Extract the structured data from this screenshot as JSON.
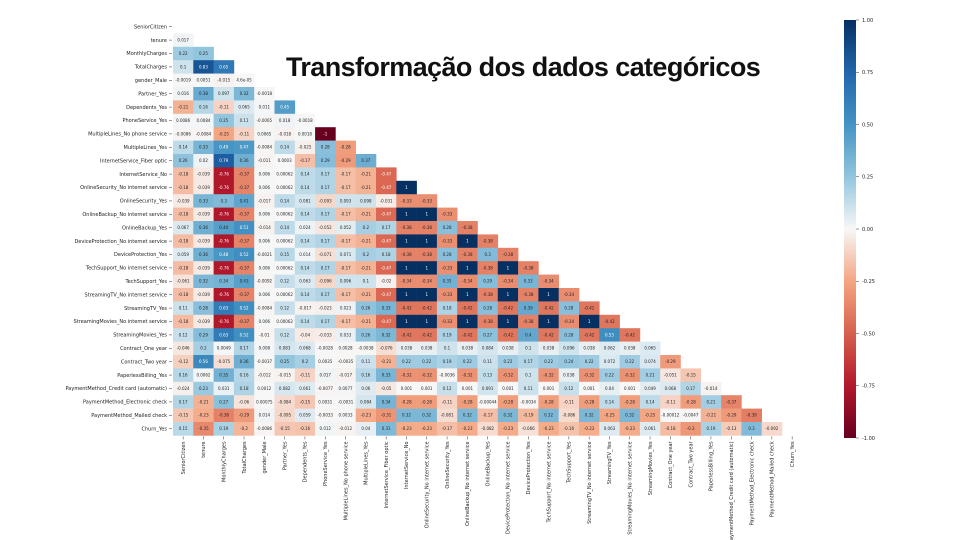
{
  "slide": {
    "title": "Transformação dos dados categóricos"
  },
  "chart_data": {
    "type": "heatmap",
    "title": "",
    "xlabel": "",
    "ylabel": "",
    "mask": "upper-triangle-including-diagonal",
    "value_range": [
      -1.0,
      1.0
    ],
    "colormap": "RdBu (red = -1, blue = +1)",
    "colorbar_ticks": [
      "1.00",
      "0.75",
      "0.50",
      "0.25",
      "0.00",
      "-0.25",
      "-0.50",
      "-0.75",
      "-1.00"
    ],
    "variables": [
      "SeniorCitizen",
      "tenure",
      "MonthlyCharges",
      "TotalCharges",
      "gender_Male",
      "Partner_Yes",
      "Dependents_Yes",
      "PhoneService_Yes",
      "MultipleLines_No phone service",
      "MultipleLines_Yes",
      "InternetService_Fiber optic",
      "InternetService_No",
      "OnlineSecurity_No internet service",
      "OnlineSecurity_Yes",
      "OnlineBackup_No internet service",
      "OnlineBackup_Yes",
      "DeviceProtection_No internet service",
      "DeviceProtection_Yes",
      "TechSupport_No internet service",
      "TechSupport_Yes",
      "StreamingTV_No internet service",
      "StreamingTV_Yes",
      "StreamingMovies_No internet service",
      "StreamingMovies_Yes",
      "Contract_One year",
      "Contract_Two year",
      "PaperlessBilling_Yes",
      "PaymentMethod_Credit card (automatic)",
      "PaymentMethod_Electronic check",
      "PaymentMethod_Mailed check",
      "Churn_Yes"
    ],
    "x_tick_labels": [
      "SeniorCitizen",
      "tenure",
      "MonthlyCharges",
      "TotalCharges",
      "gender_Male",
      "Partner_Yes",
      "Dependents_Yes",
      "PhoneService_Yes",
      "MultipleLines_No phone service",
      "MultipleLines_Yes",
      "InternetService_Fiber optic",
      "InternetService_No",
      "OnlineSecurity_No internet service",
      "OnlineSecurity_Yes",
      "OnlineBackup_No internet service",
      "OnlineBackup_Yes",
      "DeviceProtection_No internet service",
      "DeviceProtection_Yes",
      "TechSupport_No internet service",
      "TechSupport_Yes",
      "StreamingTV_No internet service",
      "StreamingTV_Yes",
      "StreamingMovies_No internet service",
      "StreamingMovies_Yes",
      "Contract_One year",
      "Contract_Two year",
      "PaperlessBilling_Yes",
      "PaymentMethod_Credit card (automatic)",
      "PaymentMethod_Electronic check",
      "PaymentMethod_Mailed check",
      "Churn_Yes"
    ],
    "rows": [
      [],
      [
        "0.017"
      ],
      [
        "0.22",
        "0.25"
      ],
      [
        "0.1",
        "0.83",
        "0.65"
      ],
      [
        "-0.0019",
        "0.0051",
        "-0.015",
        "4.6e-05"
      ],
      [
        "0.016",
        "0.38",
        "0.097",
        "0.32",
        "-0.0018"
      ],
      [
        "-0.21",
        "0.16",
        "-0.11",
        "0.065",
        "0.011",
        "0.45"
      ],
      [
        "0.0086",
        "0.0084",
        "0.25",
        "0.11",
        "-0.0065",
        "0.018",
        "-0.0018"
      ],
      [
        "-0.0086",
        "-0.0084",
        "-0.25",
        "-0.11",
        "0.0065",
        "-0.018",
        "0.0018",
        "-1"
      ],
      [
        "0.14",
        "0.33",
        "0.49",
        "0.47",
        "-0.0084",
        "0.14",
        "-0.025",
        "0.28",
        "-0.28"
      ],
      [
        "0.26",
        "0.02",
        "0.79",
        "0.36",
        "-0.011",
        "0.0003",
        "-0.17",
        "0.29",
        "-0.29",
        "0.37"
      ],
      [
        "-0.18",
        "-0.039",
        "-0.76",
        "-0.37",
        "0.006",
        "0.00062",
        "0.14",
        "0.17",
        "-0.17",
        "-0.21",
        "-0.47"
      ],
      [
        "-0.18",
        "-0.039",
        "-0.76",
        "-0.37",
        "0.006",
        "0.00062",
        "0.14",
        "0.17",
        "-0.17",
        "-0.21",
        "-0.47",
        "1"
      ],
      [
        "-0.039",
        "0.33",
        "0.3",
        "0.41",
        "-0.017",
        "0.14",
        "0.081",
        "-0.093",
        "0.093",
        "0.098",
        "-0.031",
        "-0.33",
        "-0.33"
      ],
      [
        "-0.18",
        "-0.039",
        "-0.76",
        "-0.37",
        "0.006",
        "0.00062",
        "0.14",
        "0.17",
        "-0.17",
        "-0.21",
        "-0.47",
        "1",
        "1",
        "-0.33"
      ],
      [
        "0.067",
        "0.36",
        "0.44",
        "0.51",
        "-0.014",
        "0.14",
        "0.024",
        "-0.052",
        "0.052",
        "0.2",
        "0.17",
        "-0.38",
        "-0.38",
        "0.28",
        "-0.38"
      ],
      [
        "-0.18",
        "-0.039",
        "-0.76",
        "-0.37",
        "0.006",
        "0.00062",
        "0.14",
        "0.17",
        "-0.17",
        "-0.21",
        "-0.47",
        "1",
        "1",
        "-0.33",
        "1",
        "-0.38"
      ],
      [
        "0.059",
        "0.36",
        "0.48",
        "0.52",
        "-0.0021",
        "0.15",
        "0.014",
        "-0.071",
        "0.071",
        "0.2",
        "0.18",
        "-0.38",
        "-0.38",
        "0.28",
        "-0.38",
        "0.3",
        "-0.38"
      ],
      [
        "-0.18",
        "-0.039",
        "-0.76",
        "-0.37",
        "0.006",
        "0.00062",
        "0.14",
        "0.17",
        "-0.17",
        "-0.21",
        "-0.47",
        "1",
        "1",
        "-0.33",
        "1",
        "-0.38",
        "1",
        "-0.38"
      ],
      [
        "-0.061",
        "0.32",
        "0.34",
        "0.43",
        "-0.0092",
        "0.12",
        "0.063",
        "-0.096",
        "0.096",
        "0.1",
        "-0.02",
        "-0.34",
        "-0.34",
        "0.35",
        "-0.34",
        "0.29",
        "-0.34",
        "0.33",
        "-0.34"
      ],
      [
        "-0.18",
        "-0.039",
        "-0.76",
        "-0.37",
        "0.006",
        "0.00062",
        "0.14",
        "0.17",
        "-0.17",
        "-0.21",
        "-0.47",
        "1",
        "1",
        "-0.33",
        "1",
        "-0.38",
        "1",
        "-0.38",
        "1",
        "-0.34"
      ],
      [
        "0.11",
        "0.28",
        "0.63",
        "0.52",
        "-0.0084",
        "0.12",
        "-0.017",
        "-0.023",
        "0.023",
        "0.26",
        "0.33",
        "-0.42",
        "-0.42",
        "0.18",
        "-0.42",
        "0.28",
        "-0.42",
        "0.39",
        "-0.42",
        "0.28",
        "-0.42"
      ],
      [
        "-0.18",
        "-0.039",
        "-0.76",
        "-0.37",
        "0.006",
        "0.00062",
        "0.14",
        "0.17",
        "-0.17",
        "-0.21",
        "-0.47",
        "1",
        "1",
        "-0.33",
        "1",
        "-0.38",
        "1",
        "-0.38",
        "1",
        "-0.34",
        "1",
        "-0.42"
      ],
      [
        "0.12",
        "0.29",
        "0.63",
        "0.52",
        "-0.01",
        "0.12",
        "-0.04",
        "-0.033",
        "0.033",
        "0.26",
        "0.32",
        "-0.42",
        "-0.42",
        "0.19",
        "-0.42",
        "0.27",
        "-0.42",
        "0.4",
        "-0.42",
        "0.28",
        "-0.42",
        "0.53",
        "-0.42"
      ],
      [
        "-0.046",
        "0.2",
        "0.0049",
        "0.17",
        "0.008",
        "0.083",
        "0.068",
        "-0.0028",
        "0.0028",
        "-0.0038",
        "-0.076",
        "0.038",
        "0.038",
        "0.1",
        "0.038",
        "0.084",
        "0.038",
        "0.1",
        "0.038",
        "0.096",
        "0.038",
        "0.062",
        "0.038",
        "0.065"
      ],
      [
        "-0.12",
        "0.56",
        "-0.075",
        "0.36",
        "-0.0037",
        "0.25",
        "0.2",
        "0.0035",
        "-0.0035",
        "0.11",
        "-0.21",
        "0.22",
        "0.22",
        "0.19",
        "0.22",
        "0.11",
        "0.22",
        "0.17",
        "0.22",
        "0.24",
        "0.22",
        "0.072",
        "0.22",
        "0.074",
        "-0.29"
      ],
      [
        "0.16",
        "0.0062",
        "0.35",
        "0.16",
        "-0.012",
        "-0.015",
        "-0.11",
        "0.017",
        "-0.017",
        "0.16",
        "0.33",
        "-0.32",
        "-0.32",
        "-0.0036",
        "-0.32",
        "0.13",
        "-0.32",
        "0.1",
        "-0.32",
        "0.038",
        "-0.32",
        "0.22",
        "-0.32",
        "0.21",
        "-0.051",
        "-0.15"
      ],
      [
        "-0.024",
        "0.23",
        "0.031",
        "0.18",
        "0.0012",
        "0.082",
        "0.061",
        "-0.0077",
        "0.0077",
        "0.06",
        "-0.05",
        "0.001",
        "0.001",
        "0.12",
        "0.001",
        "0.091",
        "0.001",
        "0.11",
        "0.001",
        "0.12",
        "0.001",
        "0.04",
        "0.001",
        "0.049",
        "0.068",
        "0.17",
        "-0.014"
      ],
      [
        "0.17",
        "-0.21",
        "0.27",
        "-0.06",
        "0.00075",
        "-0.084",
        "-0.15",
        "0.0031",
        "-0.0031",
        "0.084",
        "0.34",
        "-0.28",
        "-0.28",
        "-0.11",
        "-0.28",
        "-0.00044",
        "-0.28",
        "-0.0034",
        "-0.28",
        "-0.11",
        "-0.28",
        "0.14",
        "-0.28",
        "0.14",
        "-0.11",
        "-0.28",
        "0.21",
        "-0.37"
      ],
      [
        "-0.15",
        "-0.23",
        "-0.38",
        "-0.29",
        "0.014",
        "-0.095",
        "0.059",
        "-0.0033",
        "0.0033",
        "-0.23",
        "-0.31",
        "0.32",
        "0.32",
        "-0.081",
        "0.32",
        "-0.17",
        "0.32",
        "-0.19",
        "0.32",
        "-0.086",
        "0.32",
        "-0.25",
        "0.32",
        "-0.25",
        "-0.00012",
        "-0.0047",
        "-0.21",
        "-0.29",
        "-0.39"
      ],
      [
        "0.15",
        "-0.35",
        "0.19",
        "-0.2",
        "-0.0086",
        "-0.15",
        "-0.16",
        "0.012",
        "-0.012",
        "0.04",
        "0.31",
        "-0.23",
        "-0.23",
        "-0.17",
        "-0.23",
        "-0.082",
        "-0.23",
        "-0.066",
        "-0.23",
        "-0.16",
        "-0.23",
        "0.063",
        "-0.23",
        "0.061",
        "-0.18",
        "-0.3",
        "0.19",
        "-0.13",
        "0.3",
        "-0.092"
      ]
    ]
  }
}
